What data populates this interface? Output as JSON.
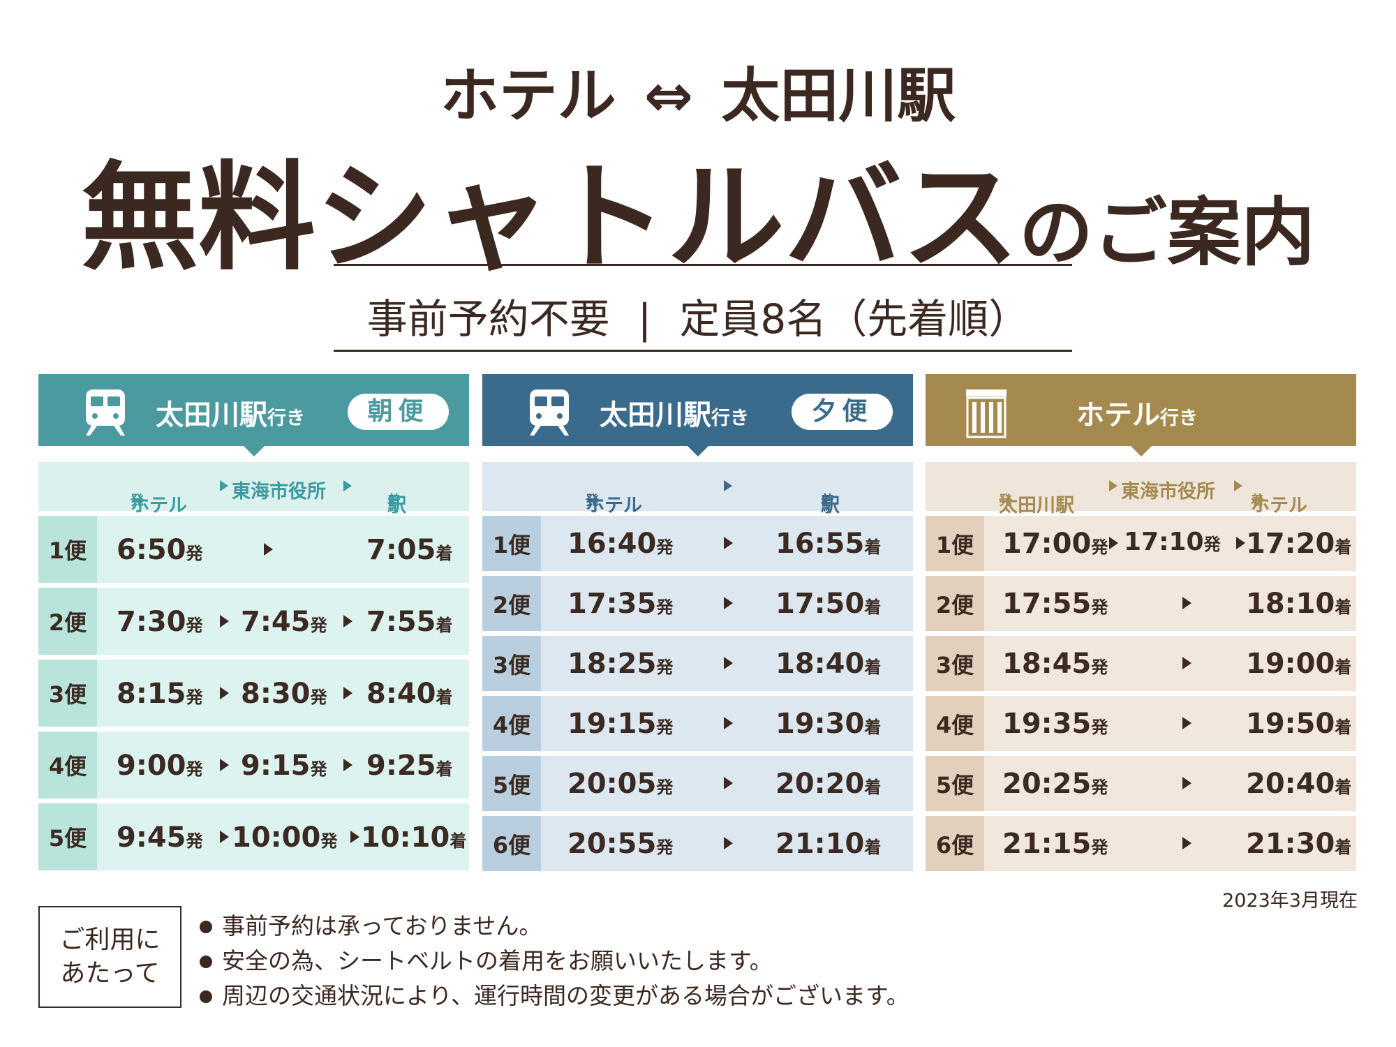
{
  "header": {
    "route_from": "ホテル",
    "route_arrow": "⇔",
    "route_to": "太田川駅",
    "title_main": "無料シャトルバス",
    "title_tail": "のご案内",
    "notice_left": "事前予約不要",
    "notice_sep": "|",
    "notice_right": "定員8名（先着順）"
  },
  "colors": {
    "text_brown": "#3b2820",
    "morning_teal": "#4a9aa0",
    "evening_blue": "#3a6a8c",
    "hotel_gold": "#a48a4e"
  },
  "panels": {
    "morning": {
      "icon": "bus-icon",
      "dest": "太田川駅",
      "dest_suffix": "行き",
      "badge": "朝便",
      "cols": {
        "c1": "ホテル",
        "c1_s": "発",
        "c2": "東海市役所",
        "c3": "駅",
        "c3_s": "着"
      },
      "rows": [
        {
          "num": "1便",
          "t1": "6:50",
          "t1_s": "発",
          "t2": "",
          "t2_s": "",
          "t3": "7:05",
          "t3_s": "着"
        },
        {
          "num": "2便",
          "t1": "7:30",
          "t1_s": "発",
          "t2": "7:45",
          "t2_s": "発",
          "t3": "7:55",
          "t3_s": "着"
        },
        {
          "num": "3便",
          "t1": "8:15",
          "t1_s": "発",
          "t2": "8:30",
          "t2_s": "発",
          "t3": "8:40",
          "t3_s": "着"
        },
        {
          "num": "4便",
          "t1": "9:00",
          "t1_s": "発",
          "t2": "9:15",
          "t2_s": "発",
          "t3": "9:25",
          "t3_s": "着"
        },
        {
          "num": "5便",
          "t1": "9:45",
          "t1_s": "発",
          "t2": "10:00",
          "t2_s": "発",
          "t3": "10:10",
          "t3_s": "着"
        }
      ]
    },
    "evening": {
      "icon": "bus-icon",
      "dest": "太田川駅",
      "dest_suffix": "行き",
      "badge": "夕便",
      "cols": {
        "c1": "ホテル",
        "c1_s": "発",
        "c3": "駅",
        "c3_s": "着"
      },
      "rows": [
        {
          "num": "1便",
          "t1": "16:40",
          "t1_s": "発",
          "t3": "16:55",
          "t3_s": "着"
        },
        {
          "num": "2便",
          "t1": "17:35",
          "t1_s": "発",
          "t3": "17:50",
          "t3_s": "着"
        },
        {
          "num": "3便",
          "t1": "18:25",
          "t1_s": "発",
          "t3": "18:40",
          "t3_s": "着"
        },
        {
          "num": "4便",
          "t1": "19:15",
          "t1_s": "発",
          "t3": "19:30",
          "t3_s": "着"
        },
        {
          "num": "5便",
          "t1": "20:05",
          "t1_s": "発",
          "t3": "20:20",
          "t3_s": "着"
        },
        {
          "num": "6便",
          "t1": "20:55",
          "t1_s": "発",
          "t3": "21:10",
          "t3_s": "着"
        }
      ]
    },
    "hotel": {
      "icon": "building-icon",
      "dest": "ホテル",
      "dest_suffix": "行き",
      "cols": {
        "c1": "太田川駅",
        "c1_s": "発",
        "c2": "東海市役所",
        "c3": "ホテル",
        "c3_s": "着"
      },
      "rows": [
        {
          "num": "1便",
          "t1": "17:00",
          "t1_s": "発",
          "t2": "17:10",
          "t2_s": "発",
          "t3": "17:20",
          "t3_s": "着"
        },
        {
          "num": "2便",
          "t1": "17:55",
          "t1_s": "発",
          "t2": "",
          "t2_s": "",
          "t3": "18:10",
          "t3_s": "着"
        },
        {
          "num": "3便",
          "t1": "18:45",
          "t1_s": "発",
          "t2": "",
          "t2_s": "",
          "t3": "19:00",
          "t3_s": "着"
        },
        {
          "num": "4便",
          "t1": "19:35",
          "t1_s": "発",
          "t2": "",
          "t2_s": "",
          "t3": "19:50",
          "t3_s": "着"
        },
        {
          "num": "5便",
          "t1": "20:25",
          "t1_s": "発",
          "t2": "",
          "t2_s": "",
          "t3": "20:40",
          "t3_s": "着"
        },
        {
          "num": "6便",
          "t1": "21:15",
          "t1_s": "発",
          "t2": "",
          "t2_s": "",
          "t3": "21:30",
          "t3_s": "着"
        }
      ]
    }
  },
  "footer": {
    "as_of": "2023年3月現在",
    "usage_line1": "ご利用に",
    "usage_line2": "あたって",
    "notes": [
      "事前予約は承っておりません。",
      "安全の為、シートベルトの着用をお願いいたします。",
      "周辺の交通状況により、運行時間の変更がある場合がございます。"
    ]
  }
}
